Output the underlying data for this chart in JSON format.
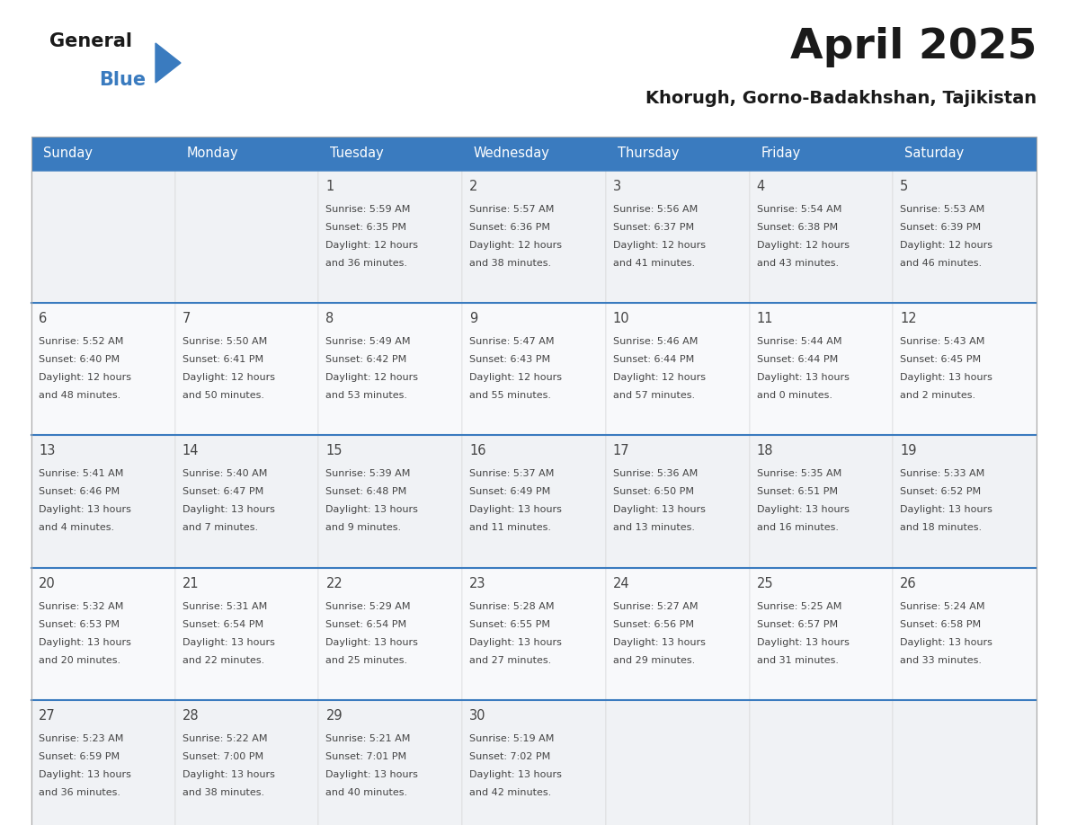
{
  "title": "April 2025",
  "subtitle": "Khorugh, Gorno-Badakhshan, Tajikistan",
  "header_bg": "#3a7bbf",
  "header_text_color": "#ffffff",
  "cell_bg": "#f0f2f5",
  "text_color": "#444444",
  "line_color": "#3a7bbf",
  "day_names": [
    "Sunday",
    "Monday",
    "Tuesday",
    "Wednesday",
    "Thursday",
    "Friday",
    "Saturday"
  ],
  "days": [
    {
      "day": 1,
      "col": 2,
      "row": 0,
      "sunrise": "5:59 AM",
      "sunset": "6:35 PM",
      "daylight": "12 hours",
      "daylight2": "and 36 minutes."
    },
    {
      "day": 2,
      "col": 3,
      "row": 0,
      "sunrise": "5:57 AM",
      "sunset": "6:36 PM",
      "daylight": "12 hours",
      "daylight2": "and 38 minutes."
    },
    {
      "day": 3,
      "col": 4,
      "row": 0,
      "sunrise": "5:56 AM",
      "sunset": "6:37 PM",
      "daylight": "12 hours",
      "daylight2": "and 41 minutes."
    },
    {
      "day": 4,
      "col": 5,
      "row": 0,
      "sunrise": "5:54 AM",
      "sunset": "6:38 PM",
      "daylight": "12 hours",
      "daylight2": "and 43 minutes."
    },
    {
      "day": 5,
      "col": 6,
      "row": 0,
      "sunrise": "5:53 AM",
      "sunset": "6:39 PM",
      "daylight": "12 hours",
      "daylight2": "and 46 minutes."
    },
    {
      "day": 6,
      "col": 0,
      "row": 1,
      "sunrise": "5:52 AM",
      "sunset": "6:40 PM",
      "daylight": "12 hours",
      "daylight2": "and 48 minutes."
    },
    {
      "day": 7,
      "col": 1,
      "row": 1,
      "sunrise": "5:50 AM",
      "sunset": "6:41 PM",
      "daylight": "12 hours",
      "daylight2": "and 50 minutes."
    },
    {
      "day": 8,
      "col": 2,
      "row": 1,
      "sunrise": "5:49 AM",
      "sunset": "6:42 PM",
      "daylight": "12 hours",
      "daylight2": "and 53 minutes."
    },
    {
      "day": 9,
      "col": 3,
      "row": 1,
      "sunrise": "5:47 AM",
      "sunset": "6:43 PM",
      "daylight": "12 hours",
      "daylight2": "and 55 minutes."
    },
    {
      "day": 10,
      "col": 4,
      "row": 1,
      "sunrise": "5:46 AM",
      "sunset": "6:44 PM",
      "daylight": "12 hours",
      "daylight2": "and 57 minutes."
    },
    {
      "day": 11,
      "col": 5,
      "row": 1,
      "sunrise": "5:44 AM",
      "sunset": "6:44 PM",
      "daylight": "13 hours",
      "daylight2": "and 0 minutes."
    },
    {
      "day": 12,
      "col": 6,
      "row": 1,
      "sunrise": "5:43 AM",
      "sunset": "6:45 PM",
      "daylight": "13 hours",
      "daylight2": "and 2 minutes."
    },
    {
      "day": 13,
      "col": 0,
      "row": 2,
      "sunrise": "5:41 AM",
      "sunset": "6:46 PM",
      "daylight": "13 hours",
      "daylight2": "and 4 minutes."
    },
    {
      "day": 14,
      "col": 1,
      "row": 2,
      "sunrise": "5:40 AM",
      "sunset": "6:47 PM",
      "daylight": "13 hours",
      "daylight2": "and 7 minutes."
    },
    {
      "day": 15,
      "col": 2,
      "row": 2,
      "sunrise": "5:39 AM",
      "sunset": "6:48 PM",
      "daylight": "13 hours",
      "daylight2": "and 9 minutes."
    },
    {
      "day": 16,
      "col": 3,
      "row": 2,
      "sunrise": "5:37 AM",
      "sunset": "6:49 PM",
      "daylight": "13 hours",
      "daylight2": "and 11 minutes."
    },
    {
      "day": 17,
      "col": 4,
      "row": 2,
      "sunrise": "5:36 AM",
      "sunset": "6:50 PM",
      "daylight": "13 hours",
      "daylight2": "and 13 minutes."
    },
    {
      "day": 18,
      "col": 5,
      "row": 2,
      "sunrise": "5:35 AM",
      "sunset": "6:51 PM",
      "daylight": "13 hours",
      "daylight2": "and 16 minutes."
    },
    {
      "day": 19,
      "col": 6,
      "row": 2,
      "sunrise": "5:33 AM",
      "sunset": "6:52 PM",
      "daylight": "13 hours",
      "daylight2": "and 18 minutes."
    },
    {
      "day": 20,
      "col": 0,
      "row": 3,
      "sunrise": "5:32 AM",
      "sunset": "6:53 PM",
      "daylight": "13 hours",
      "daylight2": "and 20 minutes."
    },
    {
      "day": 21,
      "col": 1,
      "row": 3,
      "sunrise": "5:31 AM",
      "sunset": "6:54 PM",
      "daylight": "13 hours",
      "daylight2": "and 22 minutes."
    },
    {
      "day": 22,
      "col": 2,
      "row": 3,
      "sunrise": "5:29 AM",
      "sunset": "6:54 PM",
      "daylight": "13 hours",
      "daylight2": "and 25 minutes."
    },
    {
      "day": 23,
      "col": 3,
      "row": 3,
      "sunrise": "5:28 AM",
      "sunset": "6:55 PM",
      "daylight": "13 hours",
      "daylight2": "and 27 minutes."
    },
    {
      "day": 24,
      "col": 4,
      "row": 3,
      "sunrise": "5:27 AM",
      "sunset": "6:56 PM",
      "daylight": "13 hours",
      "daylight2": "and 29 minutes."
    },
    {
      "day": 25,
      "col": 5,
      "row": 3,
      "sunrise": "5:25 AM",
      "sunset": "6:57 PM",
      "daylight": "13 hours",
      "daylight2": "and 31 minutes."
    },
    {
      "day": 26,
      "col": 6,
      "row": 3,
      "sunrise": "5:24 AM",
      "sunset": "6:58 PM",
      "daylight": "13 hours",
      "daylight2": "and 33 minutes."
    },
    {
      "day": 27,
      "col": 0,
      "row": 4,
      "sunrise": "5:23 AM",
      "sunset": "6:59 PM",
      "daylight": "13 hours",
      "daylight2": "and 36 minutes."
    },
    {
      "day": 28,
      "col": 1,
      "row": 4,
      "sunrise": "5:22 AM",
      "sunset": "7:00 PM",
      "daylight": "13 hours",
      "daylight2": "and 38 minutes."
    },
    {
      "day": 29,
      "col": 2,
      "row": 4,
      "sunrise": "5:21 AM",
      "sunset": "7:01 PM",
      "daylight": "13 hours",
      "daylight2": "and 40 minutes."
    },
    {
      "day": 30,
      "col": 3,
      "row": 4,
      "sunrise": "5:19 AM",
      "sunset": "7:02 PM",
      "daylight": "13 hours",
      "daylight2": "and 42 minutes."
    }
  ]
}
